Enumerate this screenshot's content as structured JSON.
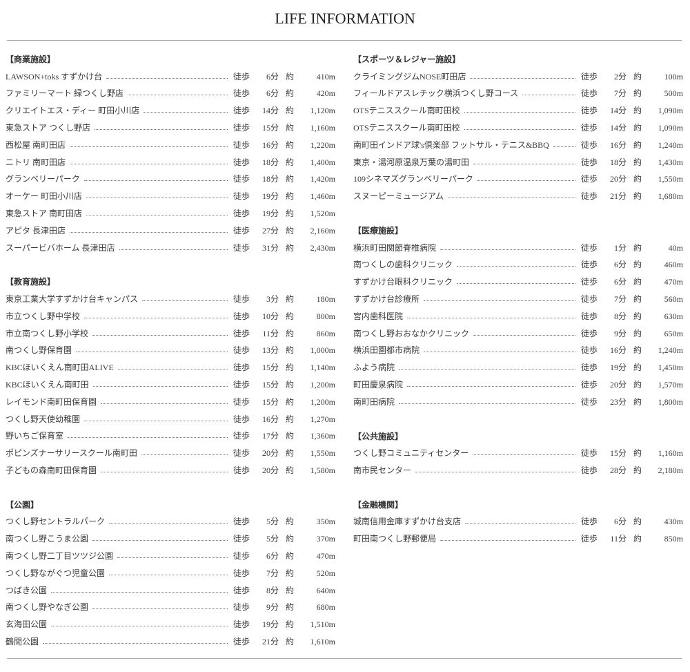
{
  "title": "LIFE INFORMATION",
  "labels": {
    "walk": "徒歩",
    "minute_unit": "分",
    "approx": "約"
  },
  "columns": [
    [
      {
        "heading": "【商業施設】",
        "items": [
          {
            "name": "LAWSON+toks すずかけ台",
            "minutes": "6",
            "distance": "410m"
          },
          {
            "name": "ファミリーマート 緑つくし野店",
            "minutes": "6",
            "distance": "420m"
          },
          {
            "name": "クリエイトエス・ディー 町田小川店",
            "minutes": "14",
            "distance": "1,120m"
          },
          {
            "name": "東急ストア つくし野店",
            "minutes": "15",
            "distance": "1,160m"
          },
          {
            "name": "西松屋 南町田店",
            "minutes": "16",
            "distance": "1,220m"
          },
          {
            "name": "ニトリ 南町田店",
            "minutes": "18",
            "distance": "1,400m"
          },
          {
            "name": "グランベリーパーク",
            "minutes": "18",
            "distance": "1,420m"
          },
          {
            "name": "オーケー 町田小川店",
            "minutes": "19",
            "distance": "1,460m"
          },
          {
            "name": "東急ストア 南町田店",
            "minutes": "19",
            "distance": "1,520m"
          },
          {
            "name": "アピタ 長津田店",
            "minutes": "27",
            "distance": "2,160m"
          },
          {
            "name": "スーパービバホーム 長津田店",
            "minutes": "31",
            "distance": "2,430m"
          }
        ]
      },
      {
        "heading": "【教育施設】",
        "items": [
          {
            "name": "東京工業大学すずかけ台キャンパス",
            "minutes": "3",
            "distance": "180m"
          },
          {
            "name": "市立つくし野中学校",
            "minutes": "10",
            "distance": "800m"
          },
          {
            "name": "市立南つくし野小学校",
            "minutes": "11",
            "distance": "860m"
          },
          {
            "name": "南つくし野保育園",
            "minutes": "13",
            "distance": "1,000m"
          },
          {
            "name": "KBCほいくえん南町田ALIVE",
            "minutes": "15",
            "distance": "1,140m"
          },
          {
            "name": "KBCほいくえん南町田",
            "minutes": "15",
            "distance": "1,200m"
          },
          {
            "name": "レイモンド南町田保育園",
            "minutes": "15",
            "distance": "1,200m"
          },
          {
            "name": "つくし野天使幼稚園",
            "minutes": "16",
            "distance": "1,270m"
          },
          {
            "name": "野いちご保育室",
            "minutes": "17",
            "distance": "1,360m"
          },
          {
            "name": "ポピンズナーサリースクール南町田",
            "minutes": "20",
            "distance": "1,550m"
          },
          {
            "name": "子どもの森南町田保育園",
            "minutes": "20",
            "distance": "1,580m"
          }
        ]
      },
      {
        "heading": "【公園】",
        "items": [
          {
            "name": "つくし野セントラルパーク",
            "minutes": "5",
            "distance": "350m"
          },
          {
            "name": "南つくし野こうま公園",
            "minutes": "5",
            "distance": "370m"
          },
          {
            "name": "南つくし野二丁目ツツジ公園",
            "minutes": "6",
            "distance": "470m"
          },
          {
            "name": "つくし野ながぐつ児童公園",
            "minutes": "7",
            "distance": "520m"
          },
          {
            "name": "つばき公園",
            "minutes": "8",
            "distance": "640m"
          },
          {
            "name": "南つくし野やなぎ公園",
            "minutes": "9",
            "distance": "680m"
          },
          {
            "name": "玄海田公園",
            "minutes": "19",
            "distance": "1,510m"
          },
          {
            "name": "鶴間公園",
            "minutes": "21",
            "distance": "1,610m"
          }
        ]
      }
    ],
    [
      {
        "heading": "【スポーツ＆レジャー施設】",
        "items": [
          {
            "name": "クライミングジムNOSE町田店",
            "minutes": "2",
            "distance": "100m"
          },
          {
            "name": "フィールドアスレチック横浜つくし野コース",
            "minutes": "7",
            "distance": "500m"
          },
          {
            "name": "OTSテニススクール南町田校",
            "minutes": "14",
            "distance": "1,090m"
          },
          {
            "name": "OTSテニススクール南町田校",
            "minutes": "14",
            "distance": "1,090m"
          },
          {
            "name": "南町田インドア球's倶楽部 フットサル・テニス&BBQ",
            "minutes": "16",
            "distance": "1,240m"
          },
          {
            "name": "東京・湯河原温泉万葉の湯町田",
            "minutes": "18",
            "distance": "1,430m"
          },
          {
            "name": "109シネマズグランベリーパーク",
            "minutes": "20",
            "distance": "1,550m"
          },
          {
            "name": "スヌーピーミュージアム",
            "minutes": "21",
            "distance": "1,680m"
          }
        ]
      },
      {
        "heading": "【医療施設】",
        "items": [
          {
            "name": "横浜町田関節脊椎病院",
            "minutes": "1",
            "distance": "40m"
          },
          {
            "name": "南つくしの歯科クリニック",
            "minutes": "6",
            "distance": "460m"
          },
          {
            "name": "すずかけ台眼科クリニック",
            "minutes": "6",
            "distance": "470m"
          },
          {
            "name": "すずかけ台診療所",
            "minutes": "7",
            "distance": "560m"
          },
          {
            "name": "宮内歯科医院",
            "minutes": "8",
            "distance": "630m"
          },
          {
            "name": "南つくし野おおなかクリニック",
            "minutes": "9",
            "distance": "650m"
          },
          {
            "name": "横浜田園都市病院",
            "minutes": "16",
            "distance": "1,240m"
          },
          {
            "name": "ふよう病院",
            "minutes": "19",
            "distance": "1,450m"
          },
          {
            "name": "町田慶泉病院",
            "minutes": "20",
            "distance": "1,570m"
          },
          {
            "name": "南町田病院",
            "minutes": "23",
            "distance": "1,800m"
          }
        ]
      },
      {
        "heading": "【公共施設】",
        "items": [
          {
            "name": "つくし野コミュニティセンター",
            "minutes": "15",
            "distance": "1,160m"
          },
          {
            "name": "南市民センター",
            "minutes": "28",
            "distance": "2,180m"
          }
        ]
      },
      {
        "heading": "【金融機関】",
        "items": [
          {
            "name": "城南信用金庫すずかけ台支店",
            "minutes": "6",
            "distance": "430m"
          },
          {
            "name": "町田南つくし野郵便局",
            "minutes": "11",
            "distance": "850m"
          }
        ]
      }
    ]
  ]
}
